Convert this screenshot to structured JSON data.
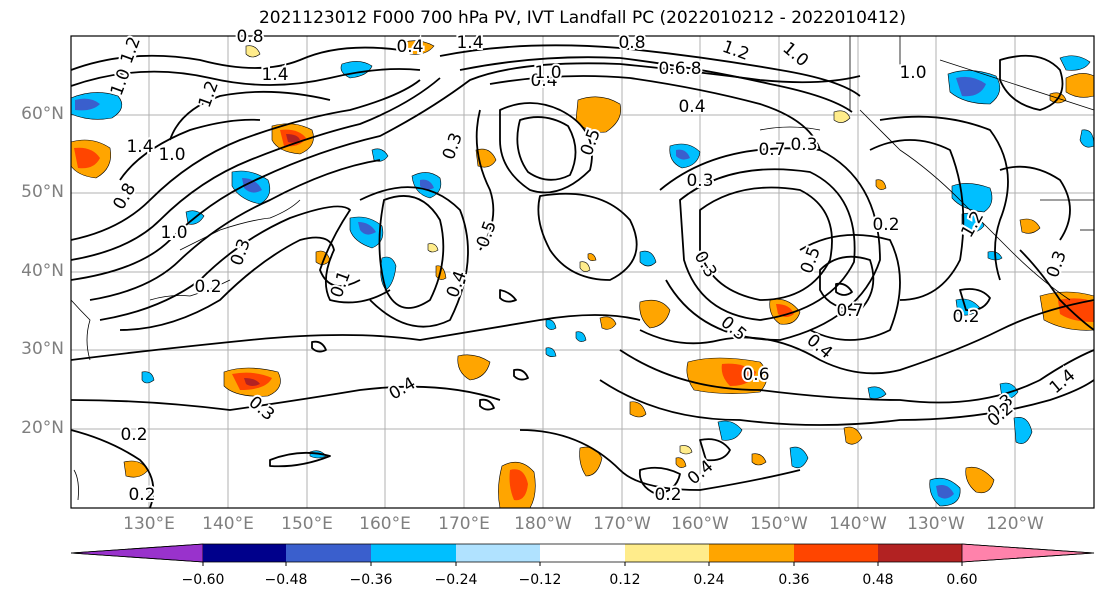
{
  "title": "2021123012 F000 700 hPa PV, IVT Landfall PC (2022010212 - 2022010412)",
  "map": {
    "lat_labels": [
      "60°N",
      "50°N",
      "40°N",
      "30°N",
      "20°N"
    ],
    "lon_labels": [
      "130°E",
      "140°E",
      "150°E",
      "160°E",
      "170°E",
      "180°W",
      "170°W",
      "160°W",
      "150°W",
      "140°W",
      "130°W",
      "120°W"
    ],
    "gridline_color": "#b0b0b0",
    "contour_color": "#000000",
    "contour_labels": [
      "1.2",
      "1.0",
      "1.4",
      "1.2",
      "1.4",
      "1.0",
      "0.8",
      "1.0",
      "0.3",
      "0.2",
      "0.8",
      "1.4",
      "0.4",
      "0.4",
      "1.0",
      "0.3",
      "0.5",
      "0.4",
      "0.5",
      "0.8",
      "0.8",
      "0.6",
      "0.7",
      "0.3",
      "0.4",
      "0.3",
      "0.2",
      "0.5",
      "0.7",
      "0.2",
      "0.2",
      "0.3",
      "0.2",
      "0.2",
      "0.4",
      "0.5",
      "0.6",
      "0.4",
      "0.3",
      "0.4",
      "0.3",
      "0.2",
      "1.4",
      "1.2",
      "1.0",
      "1.0",
      "1.2",
      "0.3",
      "0.1"
    ]
  },
  "colorbar": {
    "colors": [
      "#9932cc",
      "#00008b",
      "#3a5fcd",
      "#00bfff",
      "#b0e2ff",
      "#ffffff",
      "#ffec8b",
      "#ffa500",
      "#ff4500",
      "#b22222",
      "#ff82ab"
    ],
    "ticks": [
      "−0.60",
      "−0.48",
      "−0.36",
      "−0.24",
      "−0.12",
      "0.12",
      "0.24",
      "0.36",
      "0.48",
      "0.60"
    ]
  },
  "field_colors": {
    "pos_light": "#ffec8b",
    "pos_mid": "#ffa500",
    "pos_strong": "#ff4500",
    "pos_max": "#b22222",
    "neg_light": "#b0e2ff",
    "neg_mid": "#00bfff",
    "neg_strong": "#3a5fcd",
    "neg_max": "#00008b"
  }
}
